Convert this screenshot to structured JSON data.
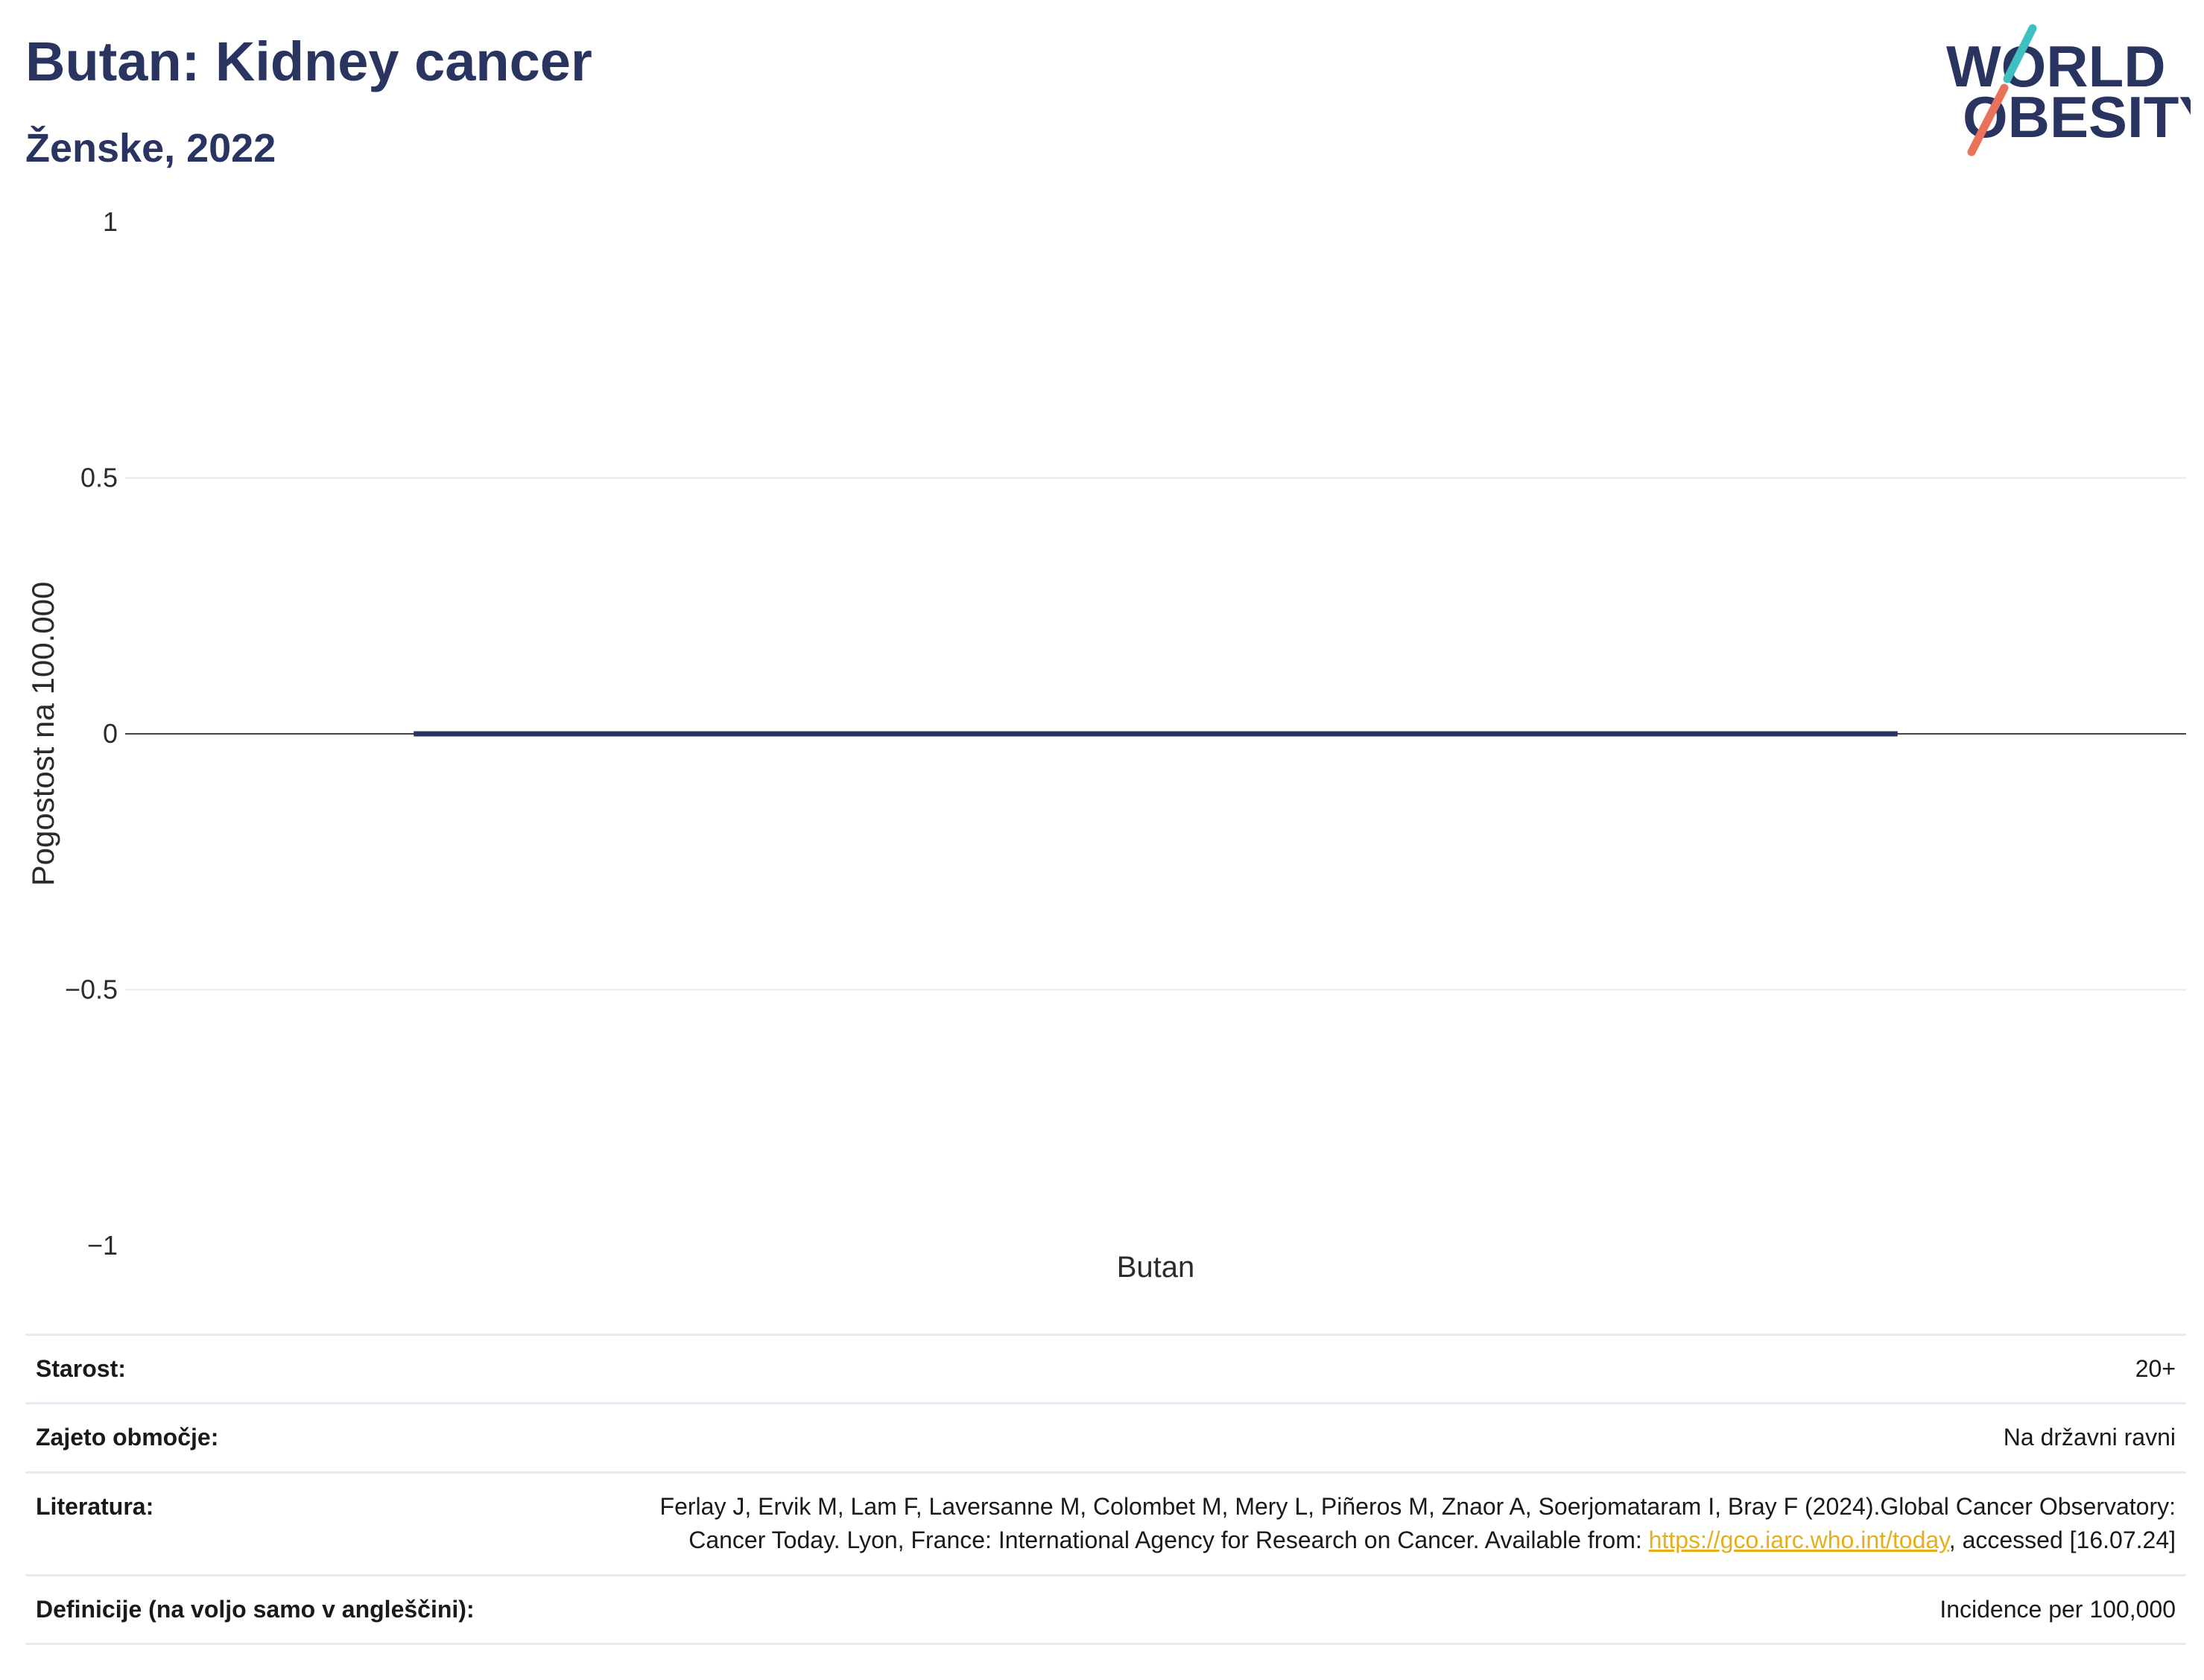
{
  "header": {
    "title": "Butan: Kidney cancer",
    "subtitle": "Ženske, 2022"
  },
  "logo": {
    "line1": "WORLD",
    "line2": "OBESITY",
    "accent_colors": [
      "#3fbfc1",
      "#e8735a"
    ]
  },
  "chart_data": {
    "type": "bar",
    "categories": [
      "Butan"
    ],
    "series": [
      {
        "values": [
          0
        ],
        "color": "#2a3461"
      }
    ],
    "xlabel": "",
    "ylabel": "Pogostost na 100.000",
    "ylim": [
      -1,
      1
    ],
    "yticks": [
      1,
      0.5,
      0,
      -0.5,
      -1
    ],
    "ytick_labels": [
      "1",
      "0.5",
      "0",
      "−0.5",
      "−1"
    ],
    "grid": true,
    "legend": "none"
  },
  "info": {
    "age_label": "Starost:",
    "age_value": "20+",
    "coverage_label": "Zajeto območje:",
    "coverage_value": "Na državni ravni",
    "literature_label": "Literatura:",
    "literature_text": "Ferlay J, Ervik M, Lam F, Laversanne M, Colombet M, Mery L, Piñeros M, Znaor A, Soerjomataram I, Bray F (2024).Global Cancer Observatory: Cancer Today. Lyon, France: International Agency for Research on Cancer. Available from: ",
    "literature_link": "https://gco.iarc.who.int/today",
    "literature_suffix": ", accessed [16.07.24]",
    "definitions_label": "Definicije (na voljo samo v angleščini):",
    "definitions_value": "Incidence per 100,000"
  }
}
